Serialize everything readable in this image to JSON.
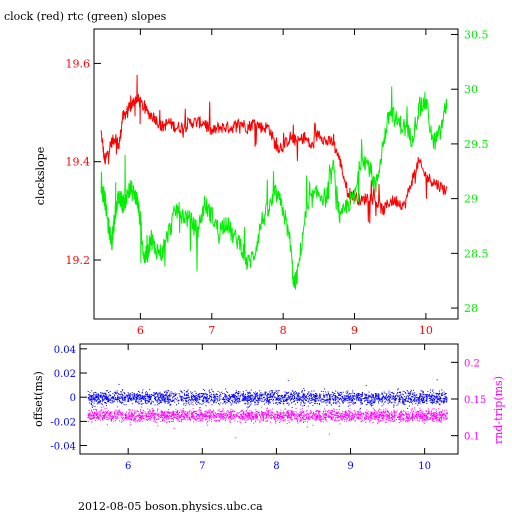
{
  "page": {
    "title": "clock (red) rtc (green) slopes",
    "footer": "2012-08-05  boson.physics.ubc.ca"
  },
  "colors": {
    "red": "#ff0000",
    "green": "#00ee00",
    "blue": "#0000ff",
    "magenta": "#ff00ff",
    "frame": "#000000"
  },
  "chart_data": [
    {
      "type": "line",
      "title": "clock (red) rtc (green) slopes",
      "ylabel": "clockslope",
      "y2label": "",
      "xlim": [
        5.35,
        10.45
      ],
      "ylim": [
        19.08,
        19.67
      ],
      "y2lim": [
        27.9,
        30.55
      ],
      "x_ticks": [
        6,
        7,
        8,
        9,
        10
      ],
      "x_tick_labels": [
        "6",
        "7",
        "8",
        "9",
        "10"
      ],
      "y_ticks": [
        19.2,
        19.4,
        19.6
      ],
      "y_tick_labels": [
        "19.2",
        "19.4",
        "19.6"
      ],
      "y2_ticks": [
        28,
        28.5,
        29,
        29.5,
        30,
        30.5
      ],
      "y2_tick_labels": [
        "28",
        "28.5",
        "29",
        "29.5",
        "30",
        "30.5"
      ],
      "series": [
        {
          "name": "clock",
          "axis": "left",
          "color": "#ff0000",
          "x": [
            5.45,
            5.5,
            5.55,
            5.6,
            5.65,
            5.7,
            5.75,
            5.8,
            5.85,
            5.9,
            5.95,
            6.0,
            6.1,
            6.2,
            6.3,
            6.4,
            6.5,
            6.6,
            6.7,
            6.8,
            6.9,
            7.0,
            7.1,
            7.2,
            7.3,
            7.4,
            7.5,
            7.6,
            7.7,
            7.8,
            7.9,
            8.0,
            8.1,
            8.2,
            8.3,
            8.4,
            8.5,
            8.6,
            8.7,
            8.8,
            8.9,
            9.0,
            9.1,
            9.2,
            9.3,
            9.4,
            9.5,
            9.6,
            9.7,
            9.8,
            9.9,
            10.0,
            10.1,
            10.2,
            10.3
          ],
          "y": [
            19.46,
            19.4,
            19.42,
            19.44,
            19.45,
            19.43,
            19.49,
            19.5,
            19.51,
            19.52,
            19.53,
            19.52,
            19.5,
            19.49,
            19.47,
            19.48,
            19.47,
            19.47,
            19.48,
            19.48,
            19.48,
            19.46,
            19.47,
            19.47,
            19.47,
            19.48,
            19.47,
            19.48,
            19.47,
            19.47,
            19.43,
            19.43,
            19.45,
            19.44,
            19.45,
            19.43,
            19.46,
            19.44,
            19.44,
            19.4,
            19.34,
            19.33,
            19.32,
            19.33,
            19.32,
            19.3,
            19.32,
            19.32,
            19.31,
            19.36,
            19.4,
            19.37,
            19.36,
            19.35,
            19.34
          ]
        },
        {
          "name": "rtc",
          "axis": "right",
          "color": "#00ee00",
          "x": [
            5.45,
            5.5,
            5.55,
            5.6,
            5.65,
            5.7,
            5.75,
            5.8,
            5.85,
            5.9,
            5.95,
            6.0,
            6.05,
            6.1,
            6.15,
            6.2,
            6.3,
            6.4,
            6.5,
            6.6,
            6.7,
            6.8,
            6.9,
            7.0,
            7.1,
            7.2,
            7.3,
            7.4,
            7.5,
            7.6,
            7.7,
            7.8,
            7.9,
            8.0,
            8.1,
            8.15,
            8.2,
            8.3,
            8.4,
            8.5,
            8.6,
            8.7,
            8.8,
            8.9,
            9.0,
            9.1,
            9.2,
            9.3,
            9.4,
            9.5,
            9.6,
            9.7,
            9.8,
            9.9,
            10.0,
            10.1,
            10.2,
            10.3
          ],
          "y": [
            29.1,
            29.0,
            28.75,
            28.6,
            28.9,
            29.0,
            28.95,
            29.0,
            29.1,
            29.05,
            29.0,
            28.8,
            28.45,
            28.5,
            28.65,
            28.55,
            28.5,
            28.7,
            28.9,
            28.85,
            28.8,
            28.7,
            28.95,
            28.85,
            28.7,
            28.8,
            28.65,
            28.6,
            28.4,
            28.5,
            28.8,
            28.9,
            29.05,
            28.9,
            28.6,
            28.2,
            28.3,
            28.8,
            29.0,
            29.05,
            29.0,
            29.3,
            28.8,
            28.95,
            29.0,
            29.4,
            29.3,
            29.1,
            29.5,
            29.8,
            29.7,
            29.65,
            29.55,
            29.8,
            29.9,
            29.5,
            29.6,
            29.9
          ]
        }
      ]
    },
    {
      "type": "scatter",
      "ylabel": "offset(ms)",
      "y2label": "rnd-trip(ms)",
      "xlim": [
        5.35,
        10.45
      ],
      "ylim": [
        -0.047,
        0.044
      ],
      "y2lim": [
        0.075,
        0.225
      ],
      "x_ticks": [
        6,
        7,
        8,
        9,
        10
      ],
      "x_tick_labels": [
        "6",
        "7",
        "8",
        "9",
        "10"
      ],
      "y_ticks": [
        -0.04,
        -0.02,
        0,
        0.02,
        0.04
      ],
      "y_tick_labels": [
        "-0.04",
        "-0.02",
        "0",
        "0.02",
        "0.04"
      ],
      "y2_ticks": [
        0.1,
        0.15,
        0.2
      ],
      "y2_tick_labels": [
        "0.1",
        "0.15",
        "0.2"
      ],
      "series": [
        {
          "name": "offset",
          "axis": "left",
          "color": "#0000ff",
          "x_range": [
            5.45,
            10.3
          ],
          "y_center": 0.0,
          "y_spread": 0.008
        },
        {
          "name": "rnd-trip",
          "axis": "right",
          "color": "#ff00ff",
          "x_range": [
            5.45,
            10.3
          ],
          "y_center": 0.128,
          "y_spread": 0.012
        }
      ]
    }
  ]
}
